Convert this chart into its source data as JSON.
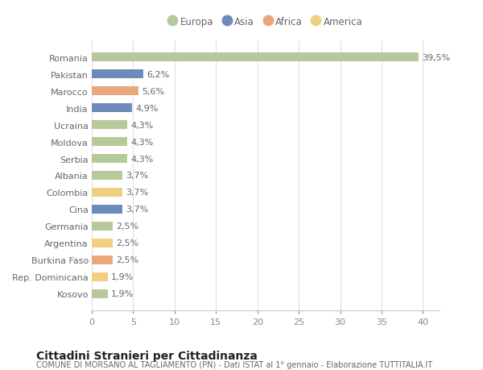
{
  "countries": [
    "Romania",
    "Pakistan",
    "Marocco",
    "India",
    "Ucraina",
    "Moldova",
    "Serbia",
    "Albania",
    "Colombia",
    "Cina",
    "Germania",
    "Argentina",
    "Burkina Faso",
    "Rep. Dominicana",
    "Kosovo"
  ],
  "values": [
    39.5,
    6.2,
    5.6,
    4.9,
    4.3,
    4.3,
    4.3,
    3.7,
    3.7,
    3.7,
    2.5,
    2.5,
    2.5,
    1.9,
    1.9
  ],
  "labels": [
    "39,5%",
    "6,2%",
    "5,6%",
    "4,9%",
    "4,3%",
    "4,3%",
    "4,3%",
    "3,7%",
    "3,7%",
    "3,7%",
    "2,5%",
    "2,5%",
    "2,5%",
    "1,9%",
    "1,9%"
  ],
  "continents": [
    "Europa",
    "Asia",
    "Africa",
    "Asia",
    "Europa",
    "Europa",
    "Europa",
    "Europa",
    "America",
    "Asia",
    "Europa",
    "America",
    "Africa",
    "America",
    "Europa"
  ],
  "continent_colors": {
    "Europa": "#b5c99a",
    "Asia": "#6b8cba",
    "Africa": "#e8a87c",
    "America": "#f0d080"
  },
  "legend_order": [
    "Europa",
    "Asia",
    "Africa",
    "America"
  ],
  "xlim": [
    0,
    42
  ],
  "xticks": [
    0,
    5,
    10,
    15,
    20,
    25,
    30,
    35,
    40
  ],
  "title": "Cittadini Stranieri per Cittadinanza",
  "subtitle": "COMUNE DI MORSANO AL TAGLIAMENTO (PN) - Dati ISTAT al 1° gennaio - Elaborazione TUTTITALIA.IT",
  "bg_color": "#ffffff",
  "grid_color": "#e0e0e0",
  "bar_height": 0.55,
  "label_fontsize": 8,
  "tick_fontsize": 8,
  "title_fontsize": 10,
  "subtitle_fontsize": 7
}
